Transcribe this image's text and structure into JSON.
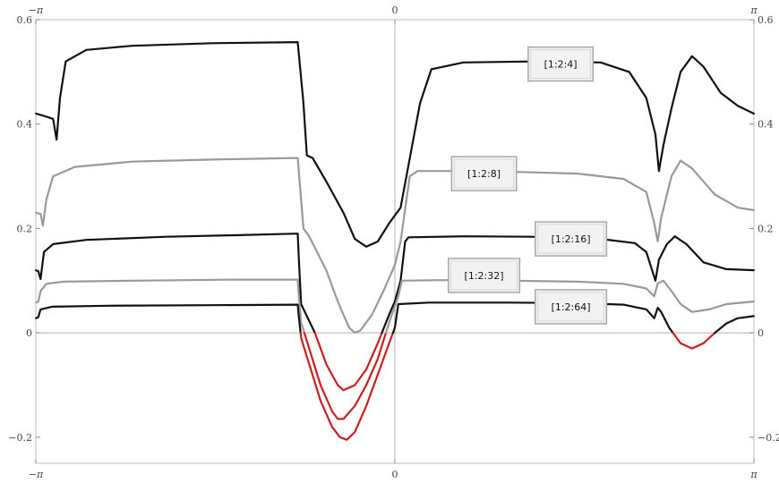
{
  "chart_data": {
    "type": "line",
    "title": "",
    "xlabel": "",
    "ylabel": "",
    "xlim": [
      -3.14159,
      3.14159
    ],
    "ylim": [
      -0.25,
      0.6
    ],
    "grid": false,
    "frame": true,
    "x_ticks": [
      {
        "value": -3.14159,
        "label": "−π"
      },
      {
        "value": 0,
        "label": "0"
      },
      {
        "value": 3.14159,
        "label": "π"
      }
    ],
    "y_ticks": [
      {
        "value": -0.2,
        "label": "−0.2"
      },
      {
        "value": 0,
        "label": "0"
      },
      {
        "value": 0.2,
        "label": "0.2"
      },
      {
        "value": 0.4,
        "label": "0.4"
      },
      {
        "value": 0.6,
        "label": "0.6"
      }
    ],
    "negative_color": "#cc1f1f",
    "series": [
      {
        "name": "[1:2:4]",
        "color": "#111111",
        "label_at": [
          1.45,
          0.515
        ],
        "points": [
          [
            -3.14,
            0.42
          ],
          [
            -3.06,
            0.415
          ],
          [
            -2.99,
            0.41
          ],
          [
            -2.96,
            0.37
          ],
          [
            -2.93,
            0.45
          ],
          [
            -2.88,
            0.52
          ],
          [
            -2.7,
            0.542
          ],
          [
            -2.3,
            0.55
          ],
          [
            -1.6,
            0.555
          ],
          [
            -0.85,
            0.557
          ],
          [
            -0.8,
            0.44
          ],
          [
            -0.77,
            0.34
          ],
          [
            -0.72,
            0.335
          ],
          [
            -0.6,
            0.29
          ],
          [
            -0.45,
            0.23
          ],
          [
            -0.35,
            0.18
          ],
          [
            -0.25,
            0.165
          ],
          [
            -0.15,
            0.175
          ],
          [
            -0.05,
            0.21
          ],
          [
            0.05,
            0.24
          ],
          [
            0.22,
            0.44
          ],
          [
            0.32,
            0.505
          ],
          [
            0.6,
            0.518
          ],
          [
            1.2,
            0.52
          ],
          [
            1.8,
            0.518
          ],
          [
            2.05,
            0.5
          ],
          [
            2.2,
            0.45
          ],
          [
            2.28,
            0.38
          ],
          [
            2.31,
            0.31
          ],
          [
            2.35,
            0.36
          ],
          [
            2.42,
            0.43
          ],
          [
            2.5,
            0.5
          ],
          [
            2.6,
            0.53
          ],
          [
            2.7,
            0.51
          ],
          [
            2.85,
            0.46
          ],
          [
            3.0,
            0.435
          ],
          [
            3.14,
            0.42
          ]
        ]
      },
      {
        "name": "[1:2:8]",
        "color": "#999999",
        "label_at": [
          0.78,
          0.305
        ],
        "points": [
          [
            -3.14,
            0.23
          ],
          [
            -3.1,
            0.228
          ],
          [
            -3.08,
            0.205
          ],
          [
            -3.05,
            0.255
          ],
          [
            -2.99,
            0.3
          ],
          [
            -2.8,
            0.318
          ],
          [
            -2.3,
            0.328
          ],
          [
            -1.6,
            0.332
          ],
          [
            -0.85,
            0.335
          ],
          [
            -0.83,
            0.28
          ],
          [
            -0.8,
            0.2
          ],
          [
            -0.75,
            0.185
          ],
          [
            -0.6,
            0.12
          ],
          [
            -0.5,
            0.06
          ],
          [
            -0.4,
            0.01
          ],
          [
            -0.35,
            0.0
          ],
          [
            -0.3,
            0.005
          ],
          [
            -0.2,
            0.035
          ],
          [
            -0.1,
            0.08
          ],
          [
            0.0,
            0.13
          ],
          [
            0.05,
            0.175
          ],
          [
            0.13,
            0.3
          ],
          [
            0.2,
            0.31
          ],
          [
            0.8,
            0.31
          ],
          [
            1.6,
            0.305
          ],
          [
            2.0,
            0.295
          ],
          [
            2.2,
            0.27
          ],
          [
            2.27,
            0.21
          ],
          [
            2.3,
            0.175
          ],
          [
            2.33,
            0.22
          ],
          [
            2.42,
            0.3
          ],
          [
            2.5,
            0.33
          ],
          [
            2.6,
            0.315
          ],
          [
            2.8,
            0.265
          ],
          [
            3.0,
            0.24
          ],
          [
            3.14,
            0.235
          ]
        ]
      },
      {
        "name": "[1:2:16]",
        "color": "#111111",
        "label_at": [
          1.54,
          0.18
        ],
        "points": [
          [
            -3.14,
            0.12
          ],
          [
            -3.12,
            0.118
          ],
          [
            -3.1,
            0.103
          ],
          [
            -3.07,
            0.155
          ],
          [
            -2.99,
            0.17
          ],
          [
            -2.7,
            0.178
          ],
          [
            -2.0,
            0.184
          ],
          [
            -1.4,
            0.187
          ],
          [
            -0.85,
            0.19
          ],
          [
            -0.84,
            0.14
          ],
          [
            -0.82,
            0.055
          ],
          [
            -0.7,
            0.0
          ],
          [
            -0.6,
            -0.06
          ],
          [
            -0.5,
            -0.1
          ],
          [
            -0.45,
            -0.11
          ],
          [
            -0.35,
            -0.1
          ],
          [
            -0.25,
            -0.07
          ],
          [
            -0.15,
            -0.02
          ],
          [
            -0.05,
            0.035
          ],
          [
            0.0,
            0.06
          ],
          [
            0.05,
            0.1
          ],
          [
            0.09,
            0.175
          ],
          [
            0.12,
            0.183
          ],
          [
            0.6,
            0.185
          ],
          [
            1.2,
            0.184
          ],
          [
            1.8,
            0.18
          ],
          [
            2.1,
            0.172
          ],
          [
            2.2,
            0.155
          ],
          [
            2.28,
            0.1
          ],
          [
            2.31,
            0.14
          ],
          [
            2.38,
            0.17
          ],
          [
            2.45,
            0.185
          ],
          [
            2.55,
            0.17
          ],
          [
            2.7,
            0.135
          ],
          [
            2.9,
            0.122
          ],
          [
            3.14,
            0.12
          ]
        ]
      },
      {
        "name": "[1:2:32]",
        "color": "#999999",
        "label_at": [
          0.78,
          0.11
        ],
        "points": [
          [
            -3.14,
            0.058
          ],
          [
            -3.12,
            0.06
          ],
          [
            -3.1,
            0.08
          ],
          [
            -3.05,
            0.094
          ],
          [
            -2.9,
            0.098
          ],
          [
            -2.3,
            0.1
          ],
          [
            -1.4,
            0.102
          ],
          [
            -0.85,
            0.102
          ],
          [
            -0.84,
            0.07
          ],
          [
            -0.82,
            0.02
          ],
          [
            -0.75,
            -0.03
          ],
          [
            -0.65,
            -0.1
          ],
          [
            -0.55,
            -0.15
          ],
          [
            -0.5,
            -0.165
          ],
          [
            -0.45,
            -0.165
          ],
          [
            -0.35,
            -0.14
          ],
          [
            -0.25,
            -0.1
          ],
          [
            -0.15,
            -0.05
          ],
          [
            -0.05,
            0.02
          ],
          [
            0.03,
            0.07
          ],
          [
            0.06,
            0.1
          ],
          [
            0.4,
            0.101
          ],
          [
            1.0,
            0.1
          ],
          [
            1.6,
            0.098
          ],
          [
            2.0,
            0.094
          ],
          [
            2.2,
            0.085
          ],
          [
            2.27,
            0.07
          ],
          [
            2.3,
            0.095
          ],
          [
            2.35,
            0.1
          ],
          [
            2.42,
            0.08
          ],
          [
            2.5,
            0.055
          ],
          [
            2.6,
            0.04
          ],
          [
            2.75,
            0.045
          ],
          [
            2.9,
            0.055
          ],
          [
            3.14,
            0.06
          ]
        ]
      },
      {
        "name": "[1:2:64]",
        "color": "#111111",
        "label_at": [
          1.54,
          0.05
        ],
        "points": [
          [
            -3.14,
            0.028
          ],
          [
            -3.12,
            0.03
          ],
          [
            -3.1,
            0.045
          ],
          [
            -3.0,
            0.05
          ],
          [
            -2.5,
            0.052
          ],
          [
            -1.6,
            0.053
          ],
          [
            -0.85,
            0.054
          ],
          [
            -0.84,
            0.03
          ],
          [
            -0.82,
            -0.01
          ],
          [
            -0.75,
            -0.06
          ],
          [
            -0.65,
            -0.13
          ],
          [
            -0.55,
            -0.18
          ],
          [
            -0.48,
            -0.2
          ],
          [
            -0.42,
            -0.205
          ],
          [
            -0.35,
            -0.19
          ],
          [
            -0.25,
            -0.14
          ],
          [
            -0.15,
            -0.08
          ],
          [
            -0.05,
            -0.02
          ],
          [
            0.0,
            0.01
          ],
          [
            0.03,
            0.055
          ],
          [
            0.3,
            0.058
          ],
          [
            1.0,
            0.058
          ],
          [
            1.6,
            0.057
          ],
          [
            2.0,
            0.054
          ],
          [
            2.2,
            0.045
          ],
          [
            2.27,
            0.028
          ],
          [
            2.3,
            0.048
          ],
          [
            2.33,
            0.04
          ],
          [
            2.4,
            0.01
          ],
          [
            2.5,
            -0.02
          ],
          [
            2.6,
            -0.03
          ],
          [
            2.7,
            -0.02
          ],
          [
            2.8,
            0.0
          ],
          [
            2.9,
            0.018
          ],
          [
            3.0,
            0.028
          ],
          [
            3.14,
            0.032
          ]
        ]
      }
    ]
  }
}
